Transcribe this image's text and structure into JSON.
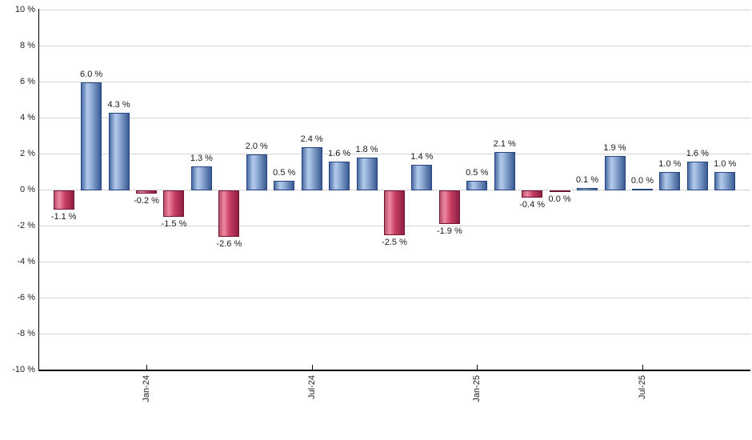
{
  "chart_data": {
    "type": "bar",
    "ylim": [
      -10,
      10
    ],
    "grid": true,
    "legend": "none",
    "y_ticks": [
      {
        "value": 10,
        "label": "10 %"
      },
      {
        "value": 8,
        "label": "8 %"
      },
      {
        "value": 6,
        "label": "6 %"
      },
      {
        "value": 4,
        "label": "4 %"
      },
      {
        "value": 2,
        "label": "2 %"
      },
      {
        "value": 0,
        "label": "0 %"
      },
      {
        "value": -2,
        "label": "-2 %"
      },
      {
        "value": -4,
        "label": "-4 %"
      },
      {
        "value": -6,
        "label": "-6 %"
      },
      {
        "value": -8,
        "label": "-8 %"
      },
      {
        "value": -10,
        "label": "-10 %"
      }
    ],
    "x_ticks": [
      {
        "label": "Jan-24",
        "bar_index": 3
      },
      {
        "label": "Jul-24",
        "bar_index": 9
      },
      {
        "label": "Jan-25",
        "bar_index": 15
      },
      {
        "label": "Jul-25",
        "bar_index": 21
      }
    ],
    "bars": [
      {
        "value": -1.1,
        "label": "-1.1 %",
        "color": "negative"
      },
      {
        "value": 6.0,
        "label": "6.0 %",
        "color": "positive"
      },
      {
        "value": 4.3,
        "label": "4.3 %",
        "color": "positive"
      },
      {
        "value": -0.2,
        "label": "-0.2 %",
        "color": "negative"
      },
      {
        "value": -1.5,
        "label": "-1.5 %",
        "color": "negative"
      },
      {
        "value": 1.3,
        "label": "1.3 %",
        "color": "positive"
      },
      {
        "value": -2.6,
        "label": "-2.6 %",
        "color": "negative"
      },
      {
        "value": 2.0,
        "label": "2.0 %",
        "color": "positive"
      },
      {
        "value": 0.5,
        "label": "0.5 %",
        "color": "positive"
      },
      {
        "value": 2.4,
        "label": "2.4 %",
        "color": "positive"
      },
      {
        "value": 1.6,
        "label": "1.6 %",
        "color": "positive"
      },
      {
        "value": 1.8,
        "label": "1.8 %",
        "color": "positive"
      },
      {
        "value": -2.5,
        "label": "-2.5 %",
        "color": "negative"
      },
      {
        "value": 1.4,
        "label": "1.4 %",
        "color": "positive"
      },
      {
        "value": -1.9,
        "label": "-1.9 %",
        "color": "negative"
      },
      {
        "value": 0.5,
        "label": "0.5 %",
        "color": "positive"
      },
      {
        "value": 2.1,
        "label": "2.1 %",
        "color": "positive"
      },
      {
        "value": -0.4,
        "label": "-0.4 %",
        "color": "negative"
      },
      {
        "value": 0.0,
        "label": "0.0 %",
        "color": "negative"
      },
      {
        "value": 0.1,
        "label": "0.1 %",
        "color": "positive"
      },
      {
        "value": 1.9,
        "label": "1.9 %",
        "color": "positive"
      },
      {
        "value": 0.0,
        "label": "0.0 %",
        "color": "positive"
      },
      {
        "value": 1.0,
        "label": "1.0 %",
        "color": "positive"
      },
      {
        "value": 1.6,
        "label": "1.6 %",
        "color": "positive"
      },
      {
        "value": 1.0,
        "label": "1.0 %",
        "color": "positive"
      }
    ],
    "colors": {
      "positive_bar_gradient": [
        "#4a6ca3",
        "#b3c9ea",
        "#94b0d8",
        "#3a5b93"
      ],
      "positive_bar_border": "#24457e",
      "negative_bar_gradient": [
        "#b94f6c",
        "#ee89a0",
        "#c73e63",
        "#8e1f42"
      ],
      "negative_bar_border": "#6f1733",
      "gridline": "#d4d4d4",
      "axis": "#000000",
      "label_text": "#1a1a1a"
    }
  }
}
